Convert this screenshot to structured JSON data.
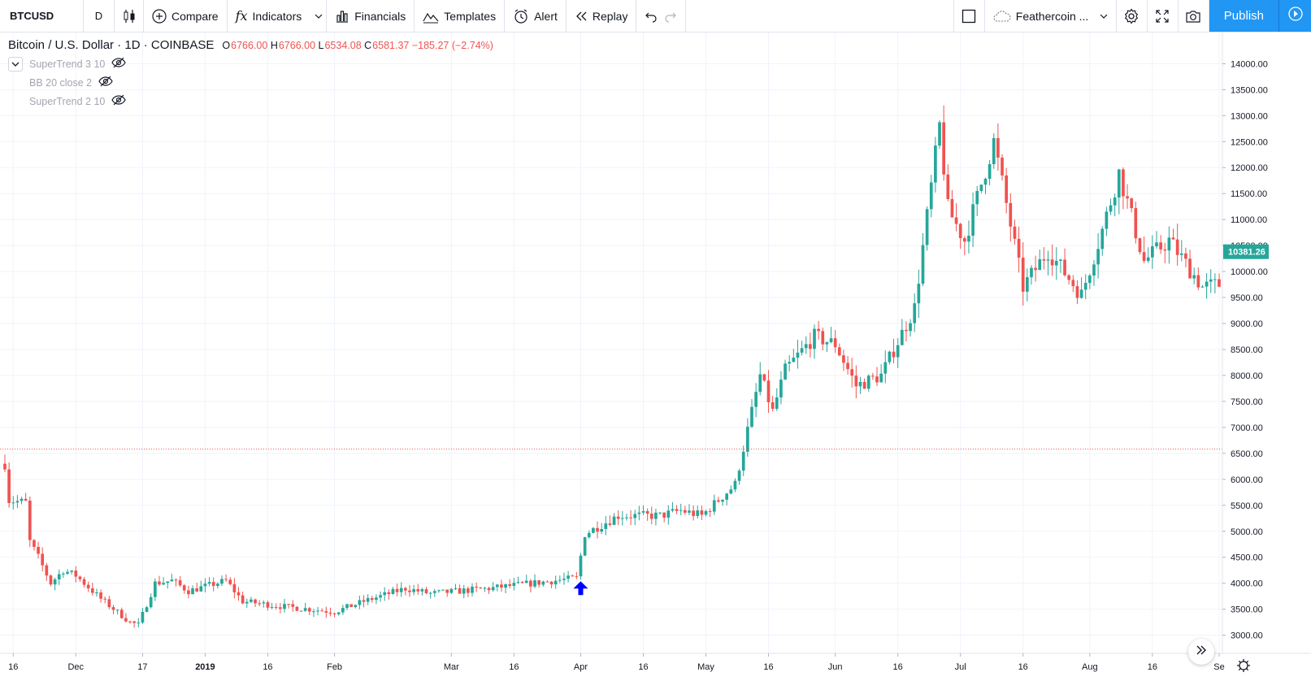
{
  "toolbar": {
    "symbol": "BTCUSD",
    "interval": "D",
    "compare": "Compare",
    "indicators": "Indicators",
    "financials": "Financials",
    "templates": "Templates",
    "alert": "Alert",
    "replay": "Replay",
    "layout_name": "Feathercoin ...",
    "publish": "Publish"
  },
  "legend": {
    "title": "Bitcoin / U.S. Dollar · 1D · COINBASE",
    "open_k": "O",
    "open": "6766.00",
    "high_k": "H",
    "high": "6766.00",
    "low_k": "L",
    "low": "6534.08",
    "close_k": "C",
    "close": "6581.37",
    "change": "−185.27 (−2.74%)",
    "studies": [
      "SuperTrend 3 10",
      "BB 20 close 2",
      "SuperTrend 2 10"
    ]
  },
  "colors": {
    "up": "#26a69a",
    "down": "#ef5350",
    "grid": "#f0f3fa",
    "price_line": "#ef5350",
    "last_price_bg": "#26a69a",
    "marker": "#0000ff"
  },
  "chart_data": {
    "type": "candlestick",
    "symbol": "BTCUSD",
    "ylim": [
      2650,
      14600
    ],
    "y_ticks": [
      3000,
      3500,
      4000,
      4500,
      5000,
      5500,
      6000,
      6500,
      7000,
      7500,
      8000,
      8500,
      9000,
      9500,
      10000,
      10500,
      11000,
      11500,
      12000,
      12500,
      13000,
      13500,
      14000
    ],
    "y_tick_labels": [
      "3000.00",
      "3500.00",
      "4000.00",
      "4500.00",
      "5000.00",
      "5500.00",
      "6000.00",
      "6500.00",
      "7000.00",
      "7500.00",
      "8000.00",
      "8500.00",
      "9000.00",
      "9500.00",
      "10000.00",
      "10500.00",
      "11000.00",
      "11500.00",
      "12000.00",
      "12500.00",
      "13000.00",
      "13500.00",
      "14000.00"
    ],
    "x_range": [
      "2018-11-14",
      "2019-09-01"
    ],
    "x_ticks": [
      {
        "label": "16",
        "date": "2018-11-16"
      },
      {
        "label": "Dec",
        "date": "2018-12-01"
      },
      {
        "label": "17",
        "date": "2018-12-17"
      },
      {
        "label": "2019",
        "date": "2019-01-01"
      },
      {
        "label": "16",
        "date": "2019-01-16"
      },
      {
        "label": "Feb",
        "date": "2019-02-01"
      },
      {
        "label": "Mar",
        "date": "2019-03-01"
      },
      {
        "label": "16",
        "date": "2019-03-16"
      },
      {
        "label": "Apr",
        "date": "2019-04-01"
      },
      {
        "label": "16",
        "date": "2019-04-16"
      },
      {
        "label": "May",
        "date": "2019-05-01"
      },
      {
        "label": "16",
        "date": "2019-05-16"
      },
      {
        "label": "Jun",
        "date": "2019-06-01"
      },
      {
        "label": "16",
        "date": "2019-06-16"
      },
      {
        "label": "Jul",
        "date": "2019-07-01"
      },
      {
        "label": "16",
        "date": "2019-07-16"
      },
      {
        "label": "Aug",
        "date": "2019-08-01"
      },
      {
        "label": "16",
        "date": "2019-08-16"
      },
      {
        "label": "Se",
        "date": "2019-09-01"
      }
    ],
    "horizontal_line": 6581.37,
    "last_price": 10381.26,
    "last_price_label": "10381.26",
    "marker": {
      "type": "arrow-up",
      "date": "2019-04-01",
      "price": 3850
    },
    "anchor_closes": [
      {
        "date": "2018-11-14",
        "close": 6300
      },
      {
        "date": "2018-11-15",
        "close": 5600
      },
      {
        "date": "2018-11-19",
        "close": 5550
      },
      {
        "date": "2018-11-20",
        "close": 4800
      },
      {
        "date": "2018-11-22",
        "close": 4500
      },
      {
        "date": "2018-11-25",
        "close": 4000
      },
      {
        "date": "2018-11-28",
        "close": 4250
      },
      {
        "date": "2018-12-01",
        "close": 4150
      },
      {
        "date": "2018-12-07",
        "close": 3700
      },
      {
        "date": "2018-12-14",
        "close": 3250
      },
      {
        "date": "2018-12-16",
        "close": 3200
      },
      {
        "date": "2018-12-20",
        "close": 4000
      },
      {
        "date": "2018-12-24",
        "close": 4050
      },
      {
        "date": "2018-12-28",
        "close": 3850
      },
      {
        "date": "2019-01-06",
        "close": 4050
      },
      {
        "date": "2019-01-10",
        "close": 3650
      },
      {
        "date": "2019-01-20",
        "close": 3550
      },
      {
        "date": "2019-02-01",
        "close": 3450
      },
      {
        "date": "2019-02-08",
        "close": 3650
      },
      {
        "date": "2019-02-18",
        "close": 3900
      },
      {
        "date": "2019-02-24",
        "close": 3800
      },
      {
        "date": "2019-03-10",
        "close": 3900
      },
      {
        "date": "2019-03-31",
        "close": 4100
      },
      {
        "date": "2019-04-02",
        "close": 4950
      },
      {
        "date": "2019-04-10",
        "close": 5300
      },
      {
        "date": "2019-04-20",
        "close": 5300
      },
      {
        "date": "2019-04-25",
        "close": 5400
      },
      {
        "date": "2019-04-30",
        "close": 5300
      },
      {
        "date": "2019-05-08",
        "close": 5900
      },
      {
        "date": "2019-05-14",
        "close": 8000
      },
      {
        "date": "2019-05-17",
        "close": 7300
      },
      {
        "date": "2019-05-20",
        "close": 8100
      },
      {
        "date": "2019-05-27",
        "close": 8750
      },
      {
        "date": "2019-06-01",
        "close": 8600
      },
      {
        "date": "2019-06-06",
        "close": 7800
      },
      {
        "date": "2019-06-12",
        "close": 8000
      },
      {
        "date": "2019-06-20",
        "close": 9300
      },
      {
        "date": "2019-06-26",
        "close": 12800
      },
      {
        "date": "2019-06-28",
        "close": 11200
      },
      {
        "date": "2019-07-02",
        "close": 10600
      },
      {
        "date": "2019-07-09",
        "close": 12500
      },
      {
        "date": "2019-07-16",
        "close": 9700
      },
      {
        "date": "2019-07-22",
        "close": 10400
      },
      {
        "date": "2019-07-30",
        "close": 9550
      },
      {
        "date": "2019-08-04",
        "close": 10800
      },
      {
        "date": "2019-08-08",
        "close": 11900
      },
      {
        "date": "2019-08-14",
        "close": 10200
      },
      {
        "date": "2019-08-20",
        "close": 10600
      },
      {
        "date": "2019-08-28",
        "close": 9700
      },
      {
        "date": "2019-09-01",
        "close": 9750
      }
    ]
  }
}
